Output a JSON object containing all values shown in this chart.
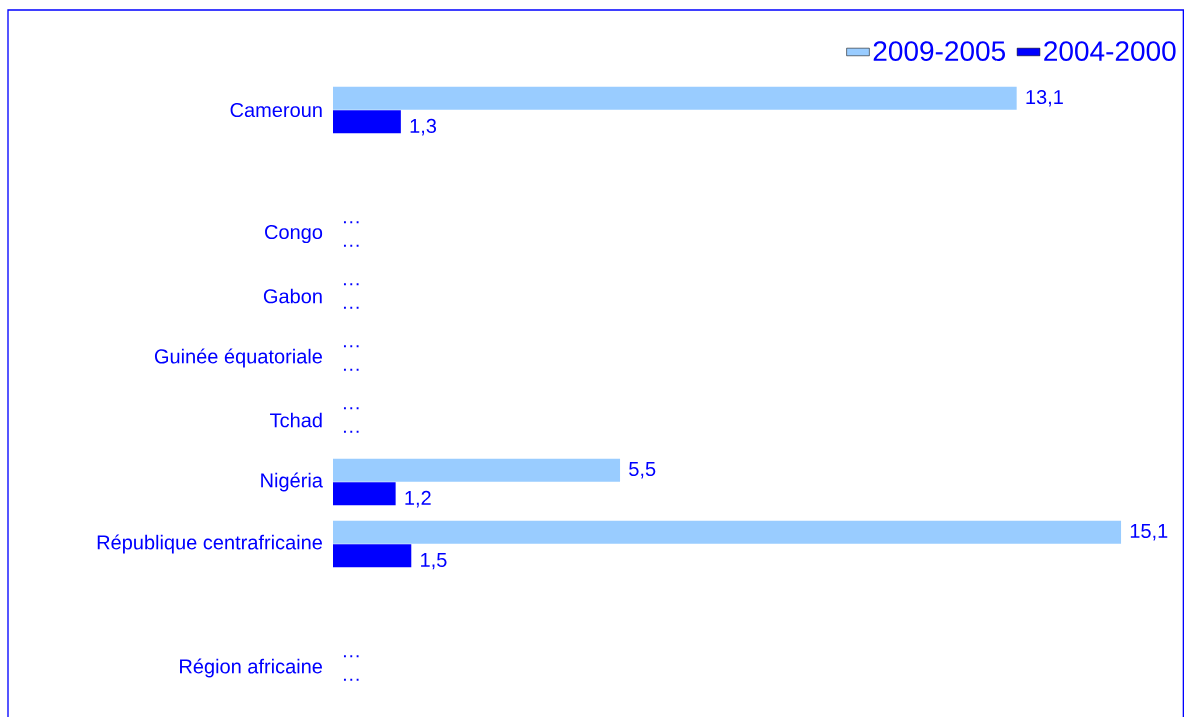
{
  "chart_data": {
    "type": "bar",
    "orientation": "horizontal",
    "categories": [
      "Cameroun",
      null,
      "Congo",
      "Gabon",
      "Guinée équatoriale",
      "Tchad",
      "Nigéria",
      "République centrafricaine",
      null,
      "Région africaine"
    ],
    "series": [
      {
        "name": "2009-2005",
        "color": "#99ccff",
        "values": [
          13.1,
          null,
          null,
          null,
          null,
          null,
          5.5,
          15.1,
          null,
          null
        ],
        "value_labels": [
          "13,1",
          null,
          "…",
          "…",
          "…",
          "…",
          "5,5",
          "15,1",
          null,
          "…"
        ]
      },
      {
        "name": "2004-2000",
        "color": "#0000ff",
        "values": [
          1.3,
          null,
          null,
          null,
          null,
          null,
          1.2,
          1.5,
          null,
          null
        ],
        "value_labels": [
          "1,3",
          null,
          "…",
          "…",
          "…",
          "…",
          "1,2",
          "1,5",
          null,
          "…"
        ]
      }
    ],
    "xlim": [
      0,
      16.3
    ],
    "tick_labels": "y",
    "legend": "top right"
  }
}
